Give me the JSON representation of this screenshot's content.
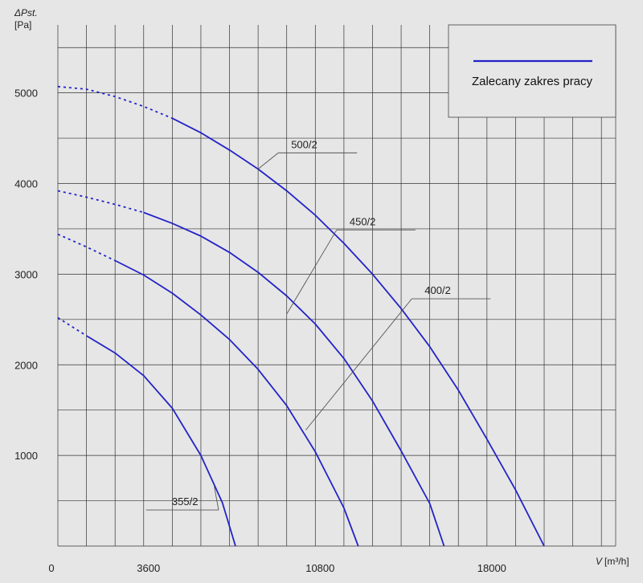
{
  "chart_data": {
    "type": "line",
    "title": "",
    "ylabel": "ΔPst.",
    "yunit": "[Pa]",
    "xlabel": "V",
    "xunit": "[m³/h]",
    "xlim": [
      0,
      23400
    ],
    "ylim": [
      0,
      5750
    ],
    "x_ticks": [
      0,
      3600,
      10800,
      18000
    ],
    "x_tick_labels": [
      "0",
      "3600",
      "10800",
      "18000"
    ],
    "y_ticks": [
      1000,
      2000,
      3000,
      4000,
      5000
    ],
    "y_tick_labels": [
      "1000",
      "2000",
      "3000",
      "4000",
      "5000"
    ],
    "grid": true,
    "legend": {
      "position": "top-right",
      "entries": [
        {
          "label": "Zalecany zakres pracy",
          "color": "#2323c8"
        }
      ]
    },
    "series": [
      {
        "name": "355/2",
        "color": "#2323c8",
        "dashed_until_x": 1200,
        "points": [
          [
            0,
            2520
          ],
          [
            600,
            2420
          ],
          [
            1200,
            2320
          ],
          [
            2400,
            2130
          ],
          [
            3600,
            1880
          ],
          [
            4800,
            1520
          ],
          [
            6000,
            1000
          ],
          [
            6900,
            480
          ],
          [
            7450,
            0
          ]
        ]
      },
      {
        "name": "400/2",
        "color": "#2323c8",
        "dashed_until_x": 2400,
        "points": [
          [
            0,
            3440
          ],
          [
            1200,
            3300
          ],
          [
            2400,
            3150
          ],
          [
            3600,
            2990
          ],
          [
            4800,
            2790
          ],
          [
            6000,
            2550
          ],
          [
            7200,
            2280
          ],
          [
            8400,
            1950
          ],
          [
            9600,
            1550
          ],
          [
            10800,
            1040
          ],
          [
            12000,
            420
          ],
          [
            12600,
            0
          ]
        ]
      },
      {
        "name": "450/2",
        "color": "#2323c8",
        "dashed_until_x": 3600,
        "points": [
          [
            0,
            3920
          ],
          [
            1200,
            3850
          ],
          [
            2400,
            3770
          ],
          [
            3600,
            3680
          ],
          [
            4800,
            3560
          ],
          [
            6000,
            3420
          ],
          [
            7200,
            3240
          ],
          [
            8400,
            3020
          ],
          [
            9600,
            2760
          ],
          [
            10800,
            2450
          ],
          [
            12000,
            2070
          ],
          [
            13200,
            1600
          ],
          [
            14400,
            1050
          ],
          [
            15600,
            470
          ],
          [
            16200,
            0
          ]
        ]
      },
      {
        "name": "500/2",
        "color": "#2323c8",
        "dashed_until_x": 4800,
        "points": [
          [
            0,
            5070
          ],
          [
            1200,
            5040
          ],
          [
            2400,
            4960
          ],
          [
            3600,
            4850
          ],
          [
            4800,
            4720
          ],
          [
            6000,
            4560
          ],
          [
            7200,
            4370
          ],
          [
            8400,
            4160
          ],
          [
            9600,
            3920
          ],
          [
            10800,
            3650
          ],
          [
            12000,
            3340
          ],
          [
            13200,
            3000
          ],
          [
            14400,
            2620
          ],
          [
            15600,
            2200
          ],
          [
            16800,
            1720
          ],
          [
            18000,
            1180
          ],
          [
            19200,
            620
          ],
          [
            20400,
            0
          ]
        ]
      }
    ],
    "annotations": [
      {
        "series": "500/2",
        "text": "500/2",
        "anchor": [
          8400,
          4160
        ],
        "label_at": [
          9650,
          4400
        ]
      },
      {
        "series": "450/2",
        "text": "450/2",
        "anchor": [
          9600,
          2560
        ],
        "label_at": [
          12100,
          3550
        ]
      },
      {
        "series": "400/2",
        "text": "400/2",
        "anchor": [
          10400,
          1280
        ],
        "label_at": [
          15250,
          2790
        ]
      },
      {
        "series": "355/2",
        "text": "355/2",
        "anchor": [
          6560,
          660
        ],
        "label_at": [
          4650,
          460
        ]
      }
    ]
  }
}
